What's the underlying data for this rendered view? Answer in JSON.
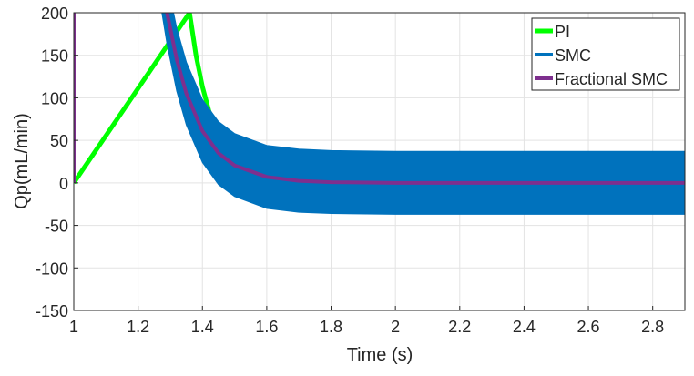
{
  "chart_data": {
    "type": "line",
    "title": "",
    "xlabel": "Time (s)",
    "ylabel": "Qp(mL/min)",
    "xlim": [
      1,
      2.9
    ],
    "ylim": [
      -150,
      200
    ],
    "grid": true,
    "legend_position": "top-right",
    "xticks": [
      "1",
      "1.2",
      "1.4",
      "1.6",
      "1.8",
      "2",
      "2.2",
      "2.4",
      "2.6",
      "2.8"
    ],
    "xtick_values": [
      1,
      1.2,
      1.4,
      1.6,
      1.8,
      2,
      2.2,
      2.4,
      2.6,
      2.8
    ],
    "yticks": [
      "200",
      "150",
      "100",
      "50",
      "0",
      "-50",
      "-100",
      "-150"
    ],
    "ytick_values": [
      200,
      150,
      100,
      50,
      0,
      -50,
      -100,
      -150
    ],
    "series": [
      {
        "name": "PI",
        "color": "#00ff00",
        "kind": "line",
        "x": [
          1.0,
          1.0,
          1.36,
          1.38,
          1.4,
          1.42,
          1.44,
          1.46,
          1.5,
          1.6,
          1.7,
          2.0,
          2.5,
          2.9
        ],
        "y": [
          0,
          0,
          200,
          150,
          113,
          85,
          64,
          48,
          27,
          6.5,
          1.6,
          0,
          0,
          0
        ]
      },
      {
        "name": "SMC",
        "color": "#0072bd",
        "kind": "band",
        "x": [
          1.26,
          1.274,
          1.29,
          1.32,
          1.35,
          1.4,
          1.45,
          1.5,
          1.6,
          1.7,
          1.8,
          2.0,
          2.2,
          2.4,
          2.6,
          2.8,
          2.9
        ],
        "upper": [
          276,
          271,
          237,
          182,
          142,
          98,
          72,
          58,
          44,
          39.7,
          38,
          37,
          37,
          37,
          37,
          37,
          37
        ],
        "lower": [
          200,
          200,
          163,
          108,
          68,
          24,
          -2,
          -16,
          -30,
          -34.6,
          -36,
          -37,
          -37,
          -37,
          -37,
          -37,
          -37
        ]
      },
      {
        "name": "Fractional SMC",
        "color": "#7e2f8e",
        "kind": "line",
        "x": [
          1.0,
          1.0,
          1.29,
          1.32,
          1.35,
          1.4,
          1.45,
          1.5,
          1.6,
          1.7,
          1.8,
          2.0,
          2.2,
          2.4,
          2.6,
          2.8,
          2.9
        ],
        "y": [
          0,
          400,
          200,
          145,
          105,
          61,
          35,
          20.5,
          7,
          2.4,
          0.8,
          0,
          0,
          0,
          0,
          0,
          0
        ]
      }
    ]
  }
}
